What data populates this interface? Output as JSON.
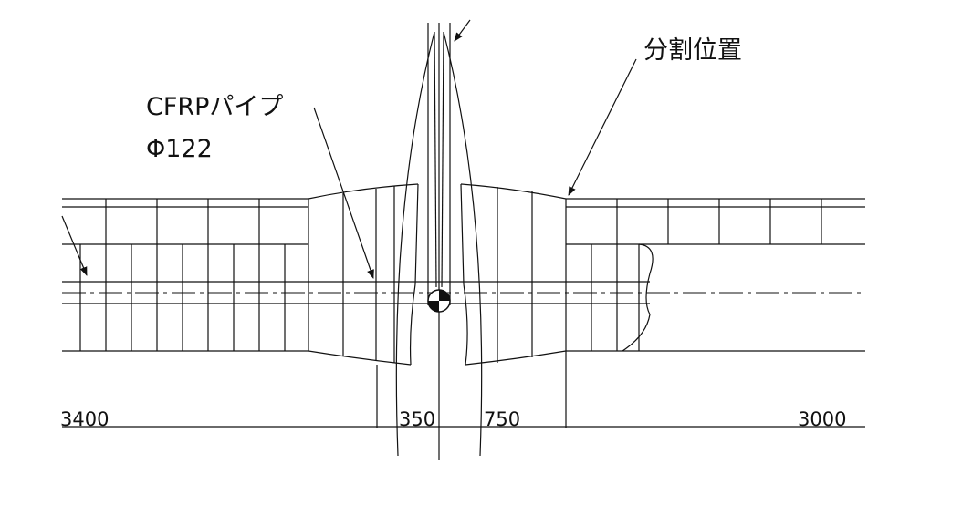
{
  "labels": {
    "pipe_name": "CFRPパイプ",
    "pipe_diameter": "Φ122",
    "split_position": "分割位置"
  },
  "dimensions": [
    "3400",
    "350",
    "750",
    "3000"
  ],
  "colors": {
    "line": "#111111",
    "background": "#ffffff"
  }
}
